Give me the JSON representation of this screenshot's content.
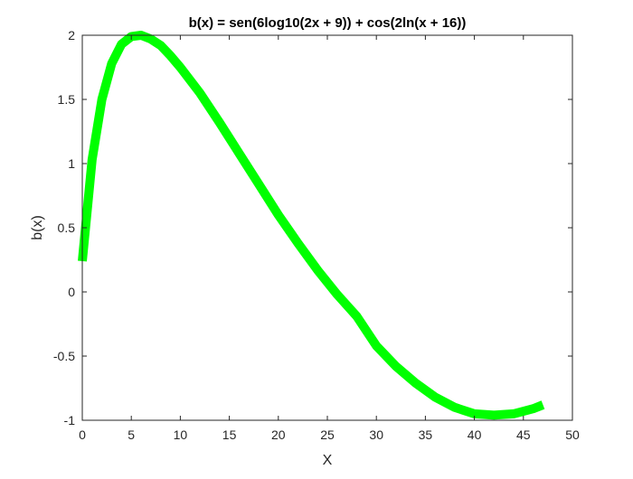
{
  "chart_data": {
    "type": "line",
    "title": "b(x) = sen(6log10(2x + 9)) + cos(2ln(x + 16))",
    "xlabel": "X",
    "ylabel": "b(x)",
    "xlim": [
      0,
      50
    ],
    "ylim": [
      -1,
      2
    ],
    "xticks": [
      0,
      5,
      10,
      15,
      20,
      25,
      30,
      35,
      40,
      45,
      50
    ],
    "yticks": [
      -1,
      -0.5,
      0,
      0.5,
      1,
      1.5,
      2
    ],
    "xtick_labels": [
      "0",
      "5",
      "10",
      "15",
      "20",
      "25",
      "30",
      "35",
      "40",
      "45",
      "50"
    ],
    "ytick_labels": [
      "-1",
      "-0.5",
      "0",
      "0.5",
      "1",
      "1.5",
      "2"
    ],
    "grid": false,
    "legend": "none",
    "series": [
      {
        "color": "#00ff00",
        "x": [
          0,
          1,
          2,
          3,
          4,
          5,
          6,
          7,
          8,
          9,
          10,
          12,
          14,
          16,
          18,
          20,
          22,
          24,
          26,
          28,
          30,
          32,
          34,
          36,
          38,
          40,
          42,
          44,
          46,
          47
        ],
        "y": [
          0.24,
          1.03,
          1.5,
          1.78,
          1.93,
          1.99,
          2.0,
          1.97,
          1.92,
          1.84,
          1.75,
          1.55,
          1.32,
          1.08,
          0.84,
          0.6,
          0.38,
          0.17,
          -0.02,
          -0.19,
          -0.42,
          -0.58,
          -0.71,
          -0.82,
          -0.9,
          -0.95,
          -0.96,
          -0.95,
          -0.91,
          -0.88
        ]
      }
    ]
  }
}
